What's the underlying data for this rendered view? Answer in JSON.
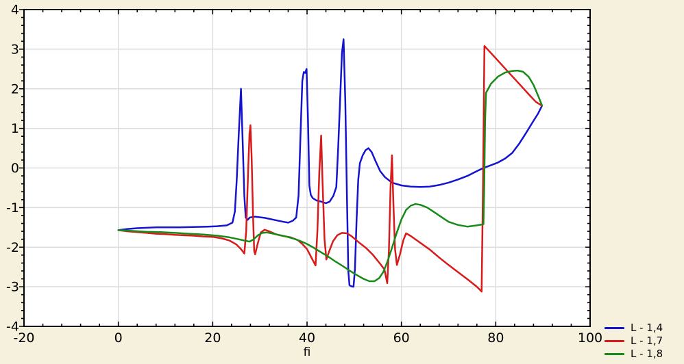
{
  "page": {
    "background": "#f5f1dc"
  },
  "chart_data": {
    "type": "line",
    "title": "",
    "xlabel": "fi",
    "ylabel": "",
    "xlim": [
      -20,
      100
    ],
    "ylim": [
      -4,
      4
    ],
    "x_major_ticks": [
      -20,
      0,
      20,
      40,
      60,
      80,
      100
    ],
    "x_minor_step": 4,
    "y_major_ticks": [
      4,
      3,
      2,
      1,
      0,
      -1,
      -2,
      -3,
      -4
    ],
    "y_minor_step": 0.2,
    "grid_x_lines": [
      0,
      20,
      40,
      60,
      80
    ],
    "grid_y_lines": [
      -3,
      -2,
      -1,
      0,
      1,
      2,
      3
    ],
    "grid_on": true,
    "grid_color": "#dcdcdc",
    "plot_background": "#ffffff",
    "axis_color": "#000000",
    "legend_position": "bottom-right",
    "series": [
      {
        "name": "L - 1,4",
        "color": "#1414d0",
        "points": [
          [
            0,
            -1.57
          ],
          [
            2,
            -1.54
          ],
          [
            4,
            -1.52
          ],
          [
            6,
            -1.51
          ],
          [
            8,
            -1.5
          ],
          [
            10,
            -1.5
          ],
          [
            13,
            -1.5
          ],
          [
            16,
            -1.49
          ],
          [
            19,
            -1.48
          ],
          [
            21,
            -1.47
          ],
          [
            23,
            -1.45
          ],
          [
            24.2,
            -1.38
          ],
          [
            24.7,
            -1.1
          ],
          [
            25.1,
            -0.3
          ],
          [
            25.5,
            0.8
          ],
          [
            26,
            2.0
          ],
          [
            26.35,
            0.7
          ],
          [
            26.7,
            -0.7
          ],
          [
            27,
            -1.25
          ],
          [
            27.4,
            -1.31
          ],
          [
            27.9,
            -1.25
          ],
          [
            29,
            -1.23
          ],
          [
            31,
            -1.26
          ],
          [
            33,
            -1.31
          ],
          [
            35,
            -1.36
          ],
          [
            36,
            -1.38
          ],
          [
            37,
            -1.33
          ],
          [
            37.7,
            -1.25
          ],
          [
            38.2,
            -0.7
          ],
          [
            38.6,
            0.8
          ],
          [
            39,
            2.2
          ],
          [
            39.3,
            2.42
          ],
          [
            39.6,
            2.4
          ],
          [
            39.9,
            2.5
          ],
          [
            40.2,
            1.2
          ],
          [
            40.5,
            -0.45
          ],
          [
            40.8,
            -0.68
          ],
          [
            41.2,
            -0.76
          ],
          [
            42,
            -0.82
          ],
          [
            43,
            -0.85
          ],
          [
            44,
            -0.89
          ],
          [
            44.8,
            -0.85
          ],
          [
            45.6,
            -0.7
          ],
          [
            46.2,
            -0.48
          ],
          [
            46.6,
            0.5
          ],
          [
            47,
            1.7
          ],
          [
            47.4,
            2.9
          ],
          [
            47.75,
            3.25
          ],
          [
            48.1,
            1.7
          ],
          [
            48.45,
            -0.7
          ],
          [
            48.75,
            -2.6
          ],
          [
            49,
            -2.96
          ],
          [
            49.4,
            -2.99
          ],
          [
            49.85,
            -3.0
          ],
          [
            50.15,
            -2.55
          ],
          [
            50.5,
            -1.3
          ],
          [
            50.85,
            -0.3
          ],
          [
            51.2,
            0.12
          ],
          [
            51.8,
            0.32
          ],
          [
            52.4,
            0.45
          ],
          [
            53,
            0.5
          ],
          [
            53.7,
            0.4
          ],
          [
            54.5,
            0.18
          ],
          [
            55.5,
            -0.08
          ],
          [
            56.5,
            -0.23
          ],
          [
            58,
            -0.37
          ],
          [
            60,
            -0.44
          ],
          [
            62,
            -0.47
          ],
          [
            64,
            -0.48
          ],
          [
            66,
            -0.47
          ],
          [
            68,
            -0.43
          ],
          [
            70,
            -0.37
          ],
          [
            72,
            -0.29
          ],
          [
            74,
            -0.2
          ],
          [
            76,
            -0.08
          ],
          [
            77.4,
            0.0
          ],
          [
            79,
            0.07
          ],
          [
            80.5,
            0.14
          ],
          [
            82,
            0.24
          ],
          [
            83.5,
            0.38
          ],
          [
            85,
            0.62
          ],
          [
            86.5,
            0.9
          ],
          [
            87.8,
            1.15
          ],
          [
            89,
            1.38
          ],
          [
            89.8,
            1.57
          ]
        ]
      },
      {
        "name": "L - 1,7",
        "color": "#d81a1a",
        "points": [
          [
            0,
            -1.57
          ],
          [
            2,
            -1.6
          ],
          [
            4,
            -1.62
          ],
          [
            6,
            -1.64
          ],
          [
            8,
            -1.66
          ],
          [
            10,
            -1.67
          ],
          [
            12,
            -1.69
          ],
          [
            14,
            -1.7
          ],
          [
            16,
            -1.71
          ],
          [
            18,
            -1.73
          ],
          [
            20,
            -1.74
          ],
          [
            22,
            -1.78
          ],
          [
            23.5,
            -1.83
          ],
          [
            25,
            -1.93
          ],
          [
            26,
            -2.05
          ],
          [
            26.7,
            -2.16
          ],
          [
            27.1,
            -1.6
          ],
          [
            27.5,
            -0.1
          ],
          [
            27.8,
            0.85
          ],
          [
            28,
            1.08
          ],
          [
            28.25,
            0.3
          ],
          [
            28.55,
            -1.2
          ],
          [
            28.8,
            -2.1
          ],
          [
            29,
            -2.18
          ],
          [
            29.5,
            -1.93
          ],
          [
            30.2,
            -1.63
          ],
          [
            31,
            -1.56
          ],
          [
            32,
            -1.6
          ],
          [
            33.5,
            -1.68
          ],
          [
            35,
            -1.72
          ],
          [
            36.5,
            -1.75
          ],
          [
            38,
            -1.82
          ],
          [
            39,
            -1.92
          ],
          [
            40,
            -2.05
          ],
          [
            41,
            -2.28
          ],
          [
            41.8,
            -2.46
          ],
          [
            42.2,
            -1.6
          ],
          [
            42.6,
            -0.1
          ],
          [
            43,
            0.82
          ],
          [
            43.3,
            -0.4
          ],
          [
            43.7,
            -1.8
          ],
          [
            44.1,
            -2.31
          ],
          [
            44.7,
            -2.1
          ],
          [
            45.5,
            -1.85
          ],
          [
            46.4,
            -1.7
          ],
          [
            47.4,
            -1.64
          ],
          [
            48.5,
            -1.65
          ],
          [
            49.5,
            -1.73
          ],
          [
            51,
            -1.88
          ],
          [
            52.5,
            -2.02
          ],
          [
            54,
            -2.2
          ],
          [
            55.5,
            -2.42
          ],
          [
            56.4,
            -2.56
          ],
          [
            57,
            -2.91
          ],
          [
            57.35,
            -2.1
          ],
          [
            57.7,
            -0.5
          ],
          [
            58,
            0.32
          ],
          [
            58.3,
            -0.9
          ],
          [
            58.65,
            -2.05
          ],
          [
            59.05,
            -2.45
          ],
          [
            59.7,
            -2.18
          ],
          [
            60.4,
            -1.83
          ],
          [
            61,
            -1.65
          ],
          [
            62,
            -1.72
          ],
          [
            64,
            -1.89
          ],
          [
            66,
            -2.06
          ],
          [
            68,
            -2.26
          ],
          [
            70,
            -2.45
          ],
          [
            72,
            -2.63
          ],
          [
            74,
            -2.81
          ],
          [
            76,
            -3.0
          ],
          [
            77,
            -3.12
          ],
          [
            77.3,
            -0.5
          ],
          [
            77.6,
            3.08
          ],
          [
            79,
            2.9
          ],
          [
            81,
            2.64
          ],
          [
            83,
            2.38
          ],
          [
            85,
            2.12
          ],
          [
            87,
            1.86
          ],
          [
            88.5,
            1.67
          ],
          [
            89.8,
            1.57
          ]
        ]
      },
      {
        "name": "L - 1,8",
        "color": "#188a18",
        "points": [
          [
            0,
            -1.57
          ],
          [
            3,
            -1.59
          ],
          [
            6,
            -1.61
          ],
          [
            9,
            -1.62
          ],
          [
            12,
            -1.64
          ],
          [
            15,
            -1.66
          ],
          [
            18,
            -1.68
          ],
          [
            21,
            -1.71
          ],
          [
            23.5,
            -1.75
          ],
          [
            25.5,
            -1.8
          ],
          [
            27,
            -1.84
          ],
          [
            27.8,
            -1.86
          ],
          [
            28.6,
            -1.81
          ],
          [
            29.6,
            -1.7
          ],
          [
            30.5,
            -1.64
          ],
          [
            31.5,
            -1.63
          ],
          [
            32.5,
            -1.65
          ],
          [
            34,
            -1.69
          ],
          [
            35.5,
            -1.73
          ],
          [
            37,
            -1.78
          ],
          [
            38.5,
            -1.84
          ],
          [
            40,
            -1.92
          ],
          [
            41.5,
            -2.02
          ],
          [
            43,
            -2.13
          ],
          [
            44.5,
            -2.24
          ],
          [
            46,
            -2.36
          ],
          [
            47.5,
            -2.47
          ],
          [
            49,
            -2.59
          ],
          [
            50.5,
            -2.7
          ],
          [
            52,
            -2.8
          ],
          [
            53.2,
            -2.86
          ],
          [
            54.3,
            -2.86
          ],
          [
            55.3,
            -2.78
          ],
          [
            56.2,
            -2.62
          ],
          [
            57,
            -2.38
          ],
          [
            58,
            -2.02
          ],
          [
            59,
            -1.64
          ],
          [
            60,
            -1.3
          ],
          [
            61,
            -1.06
          ],
          [
            62,
            -0.95
          ],
          [
            63,
            -0.91
          ],
          [
            64,
            -0.93
          ],
          [
            65.5,
            -1.0
          ],
          [
            67,
            -1.12
          ],
          [
            68.5,
            -1.24
          ],
          [
            70,
            -1.36
          ],
          [
            72,
            -1.44
          ],
          [
            74,
            -1.48
          ],
          [
            76,
            -1.45
          ],
          [
            77.4,
            -1.42
          ],
          [
            77.55,
            -0.5
          ],
          [
            77.75,
            1.2
          ],
          [
            77.95,
            1.9
          ],
          [
            79,
            2.13
          ],
          [
            80.5,
            2.31
          ],
          [
            82,
            2.41
          ],
          [
            83.5,
            2.45
          ],
          [
            84.6,
            2.46
          ],
          [
            85.8,
            2.43
          ],
          [
            87,
            2.3
          ],
          [
            88,
            2.1
          ],
          [
            89,
            1.82
          ],
          [
            89.8,
            1.58
          ]
        ]
      }
    ]
  }
}
